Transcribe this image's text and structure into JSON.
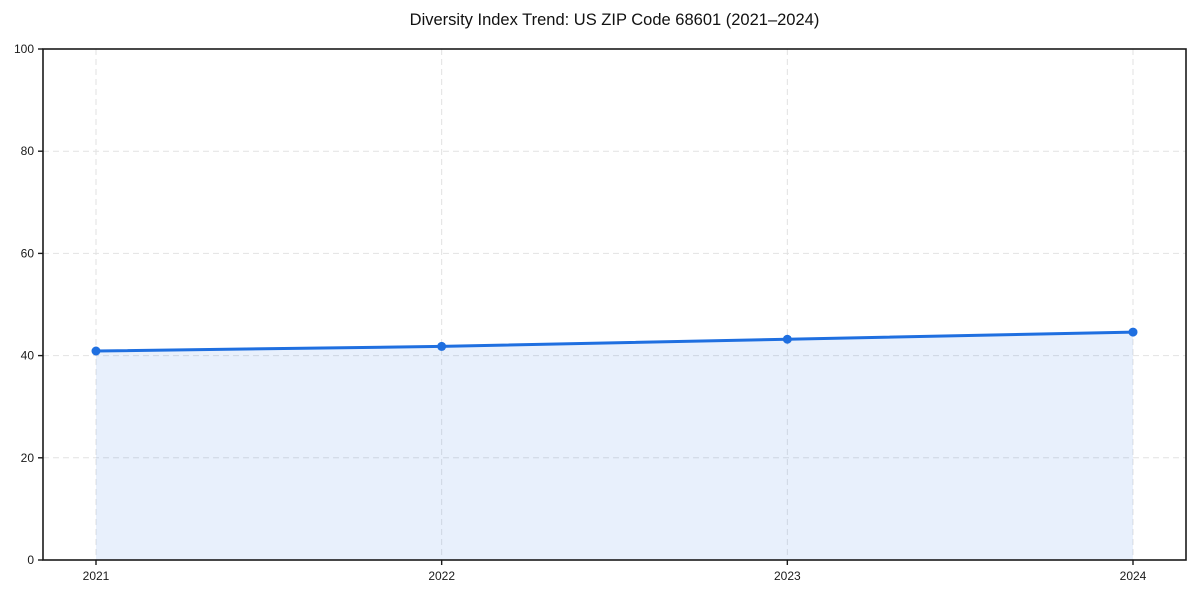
{
  "chart_data": {
    "type": "line",
    "title": "Diversity Index Trend: US ZIP Code 68601 (2021–2024)",
    "xlabel": "",
    "ylabel": "",
    "categories": [
      "2021",
      "2022",
      "2023",
      "2024"
    ],
    "series": [
      {
        "name": "Diversity Index",
        "values": [
          40.9,
          41.8,
          43.2,
          44.6
        ]
      }
    ],
    "ylim": [
      0,
      100
    ],
    "yticks": [
      0,
      20,
      40,
      60,
      80,
      100
    ],
    "grid": true,
    "grid_style": "dashed",
    "legend_position": "none",
    "area_fill": true,
    "marker": "circle",
    "colors": {
      "line": "#1f6fe0",
      "marker": "#1f6fe0",
      "fill": "#1f6fe0",
      "fill_opacity": 0.1,
      "grid": "#e2e2e2",
      "spine": "#1a1a1a",
      "text": "#1a1a1a",
      "background": "#ffffff"
    }
  }
}
